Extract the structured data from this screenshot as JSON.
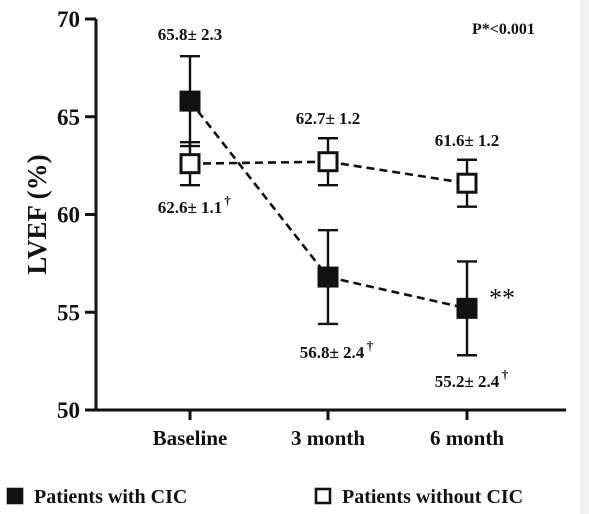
{
  "chart_data": {
    "type": "line",
    "categories": [
      "Baseline",
      "3 month",
      "6 month"
    ],
    "ylabel": "LVEF (%)",
    "ylim": [
      50,
      70
    ],
    "yticks": [
      50,
      55,
      60,
      65,
      70
    ],
    "grid": false,
    "legend_position": "bottom",
    "annotation": "P*<0.001",
    "series": [
      {
        "name": "Patients with CIC",
        "marker": "filled-square",
        "values": [
          65.8,
          56.8,
          55.2
        ],
        "errors": [
          2.3,
          2.4,
          2.4
        ],
        "labels": [
          "65.8± 2.3",
          "56.8± 2.4",
          "55.2± 2.4"
        ],
        "label_marks": [
          "",
          "†",
          "†"
        ],
        "significance": [
          "",
          "",
          "**"
        ]
      },
      {
        "name": "Patients without CIC",
        "marker": "open-square",
        "values": [
          62.6,
          62.7,
          61.6
        ],
        "errors": [
          1.1,
          1.2,
          1.2
        ],
        "labels": [
          "62.6± 1.1",
          "62.7± 1.2",
          "61.6± 1.2"
        ],
        "label_marks": [
          "†",
          "",
          ""
        ],
        "significance": [
          "",
          "",
          ""
        ]
      }
    ]
  }
}
